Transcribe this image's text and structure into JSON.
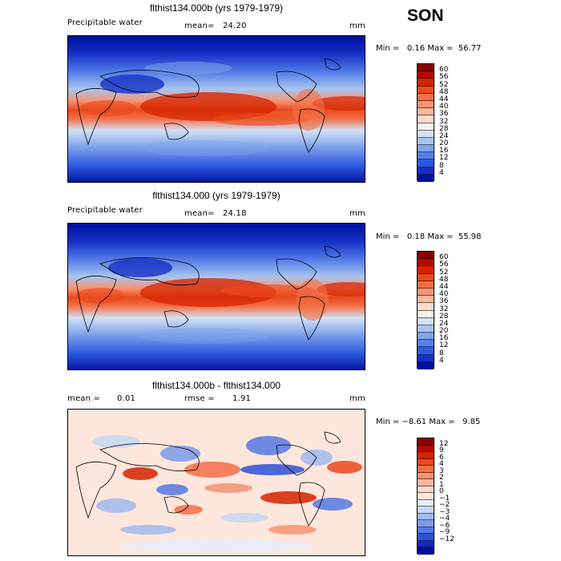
{
  "season": "SON",
  "panels": [
    {
      "id": "top",
      "title": "flthist134.000b (yrs 1979-1979)",
      "left_label": "Precipitable water",
      "mean_label": "mean=",
      "mean_value": "24.20",
      "units": "mm",
      "min_label": "Min =",
      "min_value": "0.16",
      "max_label": "Max =",
      "max_value": "56.77",
      "colorbar_labels": [
        "60",
        "56",
        "52",
        "48",
        "44",
        "40",
        "36",
        "32",
        "28",
        "24",
        "20",
        "16",
        "12",
        "8",
        "4"
      ]
    },
    {
      "id": "middle",
      "title": "flthist134.000 (yrs 1979-1979)",
      "left_label": "Precipitable water",
      "mean_label": "mean=",
      "mean_value": "24.18",
      "units": "mm",
      "min_label": "Min =",
      "min_value": "0.18",
      "max_label": "Max =",
      "max_value": "55.98",
      "colorbar_labels": [
        "60",
        "56",
        "52",
        "48",
        "44",
        "40",
        "36",
        "32",
        "28",
        "24",
        "20",
        "16",
        "12",
        "8",
        "4"
      ]
    },
    {
      "id": "bottom",
      "title": "flthist134.000b - flthist134.000",
      "mean_label": "mean =",
      "mean_value": "0.01",
      "rmse_label": "rmse =",
      "rmse_value": "1.91",
      "units": "mm",
      "min_label": "Min =",
      "min_value": "−8.61",
      "max_label": "Max =",
      "max_value": "9.85",
      "colorbar_labels": [
        "12",
        "9",
        "6",
        "4",
        "3",
        "2",
        "1",
        "0",
        "−1",
        "−2",
        "−3",
        "−4",
        "−6",
        "−9",
        "−12"
      ]
    }
  ],
  "colors": {
    "pw_scale": [
      "#8b0000",
      "#b30b00",
      "#d42400",
      "#ea4a1e",
      "#f36f48",
      "#f79372",
      "#f9b79e",
      "#fadacb",
      "#f7f2ee",
      "#d3e1f5",
      "#a9c4ee",
      "#7ea4ea",
      "#5680e8",
      "#2d58e0",
      "#1430c4",
      "#000f9a"
    ],
    "diff_scale": [
      "#8b0000",
      "#b30b00",
      "#d42400",
      "#ea4a1e",
      "#f36f48",
      "#f79372",
      "#f9b79e",
      "#fadacb",
      "#fde6dc",
      "#e7eefa",
      "#c6d8f4",
      "#a1bbee",
      "#7b9ae8",
      "#5479e2",
      "#2d52d8",
      "#122bb8",
      "#000f8f"
    ]
  }
}
